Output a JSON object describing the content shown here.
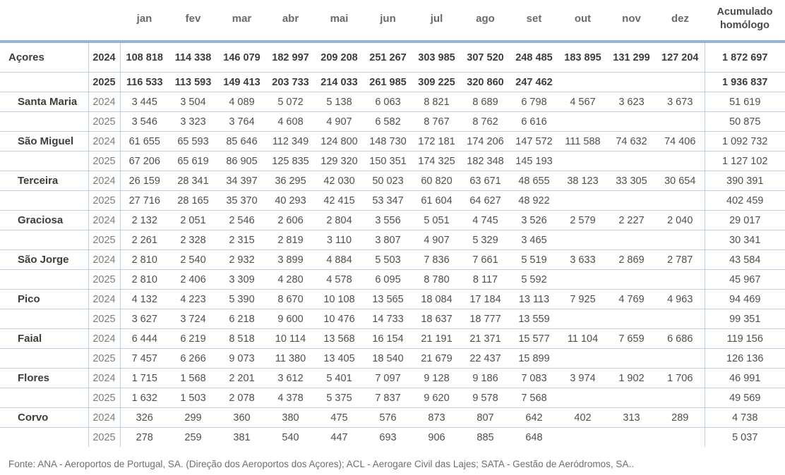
{
  "table": {
    "month_headers": [
      "jan",
      "fev",
      "mar",
      "abr",
      "mai",
      "jun",
      "jul",
      "ago",
      "set",
      "out",
      "nov",
      "dez"
    ],
    "acum_header": "Acumulado\nhomólogo",
    "groups": [
      {
        "label": "Açores",
        "indent": false,
        "totals": true,
        "rows": [
          {
            "year": "2024",
            "values": [
              "108 818",
              "114 338",
              "146 079",
              "182 997",
              "209 208",
              "251 267",
              "303 985",
              "307 520",
              "248 485",
              "183 895",
              "131 299",
              "127 204"
            ],
            "acum": "1 872 697"
          },
          {
            "year": "2025",
            "values": [
              "116 533",
              "113 593",
              "149 413",
              "203 733",
              "214 033",
              "261 985",
              "309 225",
              "320 860",
              "247 462",
              "",
              "",
              ""
            ],
            "acum": "1 936 837"
          }
        ]
      },
      {
        "label": "Santa Maria",
        "indent": true,
        "totals": false,
        "rows": [
          {
            "year": "2024",
            "values": [
              "3 445",
              "3 504",
              "4 089",
              "5 072",
              "5 138",
              "6 063",
              "8 821",
              "8 689",
              "6 798",
              "4 567",
              "3 623",
              "3 673"
            ],
            "acum": "51 619"
          },
          {
            "year": "2025",
            "values": [
              "3 546",
              "3 323",
              "3 764",
              "4 608",
              "4 907",
              "6 582",
              "8 767",
              "8 762",
              "6 616",
              "",
              "",
              ""
            ],
            "acum": "50 875"
          }
        ]
      },
      {
        "label": "São Miguel",
        "indent": true,
        "totals": false,
        "rows": [
          {
            "year": "2024",
            "values": [
              "61 655",
              "65 593",
              "85 646",
              "112 349",
              "124 800",
              "148 730",
              "172 181",
              "174 206",
              "147 572",
              "111 588",
              "74 632",
              "74 406"
            ],
            "acum": "1 092 732"
          },
          {
            "year": "2025",
            "values": [
              "67 206",
              "65 619",
              "86 905",
              "125 835",
              "129 320",
              "150 351",
              "174 325",
              "182 348",
              "145 193",
              "",
              "",
              ""
            ],
            "acum": "1 127 102"
          }
        ]
      },
      {
        "label": "Terceira",
        "indent": true,
        "totals": false,
        "rows": [
          {
            "year": "2024",
            "values": [
              "26 159",
              "28 341",
              "34 397",
              "36 295",
              "42 030",
              "50 023",
              "60 820",
              "63 671",
              "48 655",
              "38 123",
              "33 305",
              "30 654"
            ],
            "acum": "390 391"
          },
          {
            "year": "2025",
            "values": [
              "27 716",
              "28 165",
              "35 370",
              "40 293",
              "42 415",
              "53 347",
              "61 604",
              "64 627",
              "48 922",
              "",
              "",
              ""
            ],
            "acum": "402 459"
          }
        ]
      },
      {
        "label": "Graciosa",
        "indent": true,
        "totals": false,
        "rows": [
          {
            "year": "2024",
            "values": [
              "2 132",
              "2 051",
              "2 546",
              "2 606",
              "2 804",
              "3 556",
              "5 051",
              "4 745",
              "3 526",
              "2 579",
              "2 227",
              "2 040"
            ],
            "acum": "29 017"
          },
          {
            "year": "2025",
            "values": [
              "2 261",
              "2 328",
              "2 315",
              "2 819",
              "3 110",
              "3 807",
              "4 907",
              "5 329",
              "3 465",
              "",
              "",
              ""
            ],
            "acum": "30 341"
          }
        ]
      },
      {
        "label": "São Jorge",
        "indent": true,
        "totals": false,
        "rows": [
          {
            "year": "2024",
            "values": [
              "2 810",
              "2 540",
              "2 932",
              "3 899",
              "4 884",
              "5 503",
              "7 836",
              "7 661",
              "5 519",
              "3 633",
              "2 869",
              "2 787"
            ],
            "acum": "43 584"
          },
          {
            "year": "2025",
            "values": [
              "2 810",
              "2 406",
              "3 309",
              "4 280",
              "4 578",
              "6 095",
              "8 780",
              "8 117",
              "5 592",
              "",
              "",
              ""
            ],
            "acum": "45 967"
          }
        ]
      },
      {
        "label": "Pico",
        "indent": true,
        "totals": false,
        "rows": [
          {
            "year": "2024",
            "values": [
              "4 132",
              "4 223",
              "5 390",
              "8 670",
              "10 108",
              "13 565",
              "18 084",
              "17 184",
              "13 113",
              "7 925",
              "4 769",
              "4 963"
            ],
            "acum": "94 469"
          },
          {
            "year": "2025",
            "values": [
              "3 627",
              "3 724",
              "6 218",
              "9 600",
              "10 476",
              "14 733",
              "18 637",
              "18 777",
              "13 559",
              "",
              "",
              ""
            ],
            "acum": "99 351"
          }
        ]
      },
      {
        "label": "Faial",
        "indent": true,
        "totals": false,
        "rows": [
          {
            "year": "2024",
            "values": [
              "6 444",
              "6 219",
              "8 518",
              "10 114",
              "13 568",
              "16 154",
              "21 191",
              "21 371",
              "15 577",
              "11 104",
              "7 659",
              "6 686"
            ],
            "acum": "119 156"
          },
          {
            "year": "2025",
            "values": [
              "7 457",
              "6 266",
              "9 073",
              "11 380",
              "13 405",
              "18 540",
              "21 679",
              "22 437",
              "15 899",
              "",
              "",
              ""
            ],
            "acum": "126 136"
          }
        ]
      },
      {
        "label": "Flores",
        "indent": true,
        "totals": false,
        "rows": [
          {
            "year": "2024",
            "values": [
              "1 715",
              "1 568",
              "2 201",
              "3 612",
              "5 401",
              "7 097",
              "9 128",
              "9 186",
              "7 083",
              "3 974",
              "1 902",
              "1 706"
            ],
            "acum": "46 991"
          },
          {
            "year": "2025",
            "values": [
              "1 632",
              "1 503",
              "2 078",
              "4 378",
              "5 375",
              "7 837",
              "9 620",
              "9 578",
              "7 568",
              "",
              "",
              ""
            ],
            "acum": "49 569"
          }
        ]
      },
      {
        "label": "Corvo",
        "indent": true,
        "totals": false,
        "rows": [
          {
            "year": "2024",
            "values": [
              "326",
              "299",
              "360",
              "380",
              "475",
              "576",
              "873",
              "807",
              "642",
              "402",
              "313",
              "289"
            ],
            "acum": "4 738"
          },
          {
            "year": "2025",
            "values": [
              "278",
              "259",
              "381",
              "540",
              "447",
              "693",
              "906",
              "885",
              "648",
              "",
              "",
              ""
            ],
            "acum": "5 037"
          }
        ]
      }
    ]
  },
  "footer": {
    "source": "Fonte: ANA - Aeroportos de Portugal, SA. (Direção dos Aeroportos dos Açores); ACL - Aerogare Civil das Lajes; SATA - Gestão de Aeródromos, SA.."
  },
  "colors": {
    "thick_rule": "#96b3d7",
    "thin_rule": "#bfd0e6",
    "text_dark": "#3d3d3d",
    "text_gray": "#7c7c7c"
  },
  "chart_data": {
    "type": "table",
    "title": "Passageiros nos aeroportos dos Açores por ilha, 2024 vs 2025",
    "columns": [
      "jan",
      "fev",
      "mar",
      "abr",
      "mai",
      "jun",
      "jul",
      "ago",
      "set",
      "out",
      "nov",
      "dez",
      "Acumulado homólogo"
    ],
    "rows": [
      {
        "entity": "Açores",
        "year": 2024,
        "values": [
          108818,
          114338,
          146079,
          182997,
          209208,
          251267,
          303985,
          307520,
          248485,
          183895,
          131299,
          127204
        ],
        "acumulado": 1872697
      },
      {
        "entity": "Açores",
        "year": 2025,
        "values": [
          116533,
          113593,
          149413,
          203733,
          214033,
          261985,
          309225,
          320860,
          247462,
          null,
          null,
          null
        ],
        "acumulado": 1936837
      },
      {
        "entity": "Santa Maria",
        "year": 2024,
        "values": [
          3445,
          3504,
          4089,
          5072,
          5138,
          6063,
          8821,
          8689,
          6798,
          4567,
          3623,
          3673
        ],
        "acumulado": 51619
      },
      {
        "entity": "Santa Maria",
        "year": 2025,
        "values": [
          3546,
          3323,
          3764,
          4608,
          4907,
          6582,
          8767,
          8762,
          6616,
          null,
          null,
          null
        ],
        "acumulado": 50875
      },
      {
        "entity": "São Miguel",
        "year": 2024,
        "values": [
          61655,
          65593,
          85646,
          112349,
          124800,
          148730,
          172181,
          174206,
          147572,
          111588,
          74632,
          74406
        ],
        "acumulado": 1092732
      },
      {
        "entity": "São Miguel",
        "year": 2025,
        "values": [
          67206,
          65619,
          86905,
          125835,
          129320,
          150351,
          174325,
          182348,
          145193,
          null,
          null,
          null
        ],
        "acumulado": 1127102
      },
      {
        "entity": "Terceira",
        "year": 2024,
        "values": [
          26159,
          28341,
          34397,
          36295,
          42030,
          50023,
          60820,
          63671,
          48655,
          38123,
          33305,
          30654
        ],
        "acumulado": 390391
      },
      {
        "entity": "Terceira",
        "year": 2025,
        "values": [
          27716,
          28165,
          35370,
          40293,
          42415,
          53347,
          61604,
          64627,
          48922,
          null,
          null,
          null
        ],
        "acumulado": 402459
      },
      {
        "entity": "Graciosa",
        "year": 2024,
        "values": [
          2132,
          2051,
          2546,
          2606,
          2804,
          3556,
          5051,
          4745,
          3526,
          2579,
          2227,
          2040
        ],
        "acumulado": 29017
      },
      {
        "entity": "Graciosa",
        "year": 2025,
        "values": [
          2261,
          2328,
          2315,
          2819,
          3110,
          3807,
          4907,
          5329,
          3465,
          null,
          null,
          null
        ],
        "acumulado": 30341
      },
      {
        "entity": "São Jorge",
        "year": 2024,
        "values": [
          2810,
          2540,
          2932,
          3899,
          4884,
          5503,
          7836,
          7661,
          5519,
          3633,
          2869,
          2787
        ],
        "acumulado": 43584
      },
      {
        "entity": "São Jorge",
        "year": 2025,
        "values": [
          2810,
          2406,
          3309,
          4280,
          4578,
          6095,
          8780,
          8117,
          5592,
          null,
          null,
          null
        ],
        "acumulado": 45967
      },
      {
        "entity": "Pico",
        "year": 2024,
        "values": [
          4132,
          4223,
          5390,
          8670,
          10108,
          13565,
          18084,
          17184,
          13113,
          7925,
          4769,
          4963
        ],
        "acumulado": 94469
      },
      {
        "entity": "Pico",
        "year": 2025,
        "values": [
          3627,
          3724,
          6218,
          9600,
          10476,
          14733,
          18637,
          18777,
          13559,
          null,
          null,
          null
        ],
        "acumulado": 99351
      },
      {
        "entity": "Faial",
        "year": 2024,
        "values": [
          6444,
          6219,
          8518,
          10114,
          13568,
          16154,
          21191,
          21371,
          15577,
          11104,
          7659,
          6686
        ],
        "acumulado": 119156
      },
      {
        "entity": "Faial",
        "year": 2025,
        "values": [
          7457,
          6266,
          9073,
          11380,
          13405,
          18540,
          21679,
          22437,
          15899,
          null,
          null,
          null
        ],
        "acumulado": 126136
      },
      {
        "entity": "Flores",
        "year": 2024,
        "values": [
          1715,
          1568,
          2201,
          3612,
          5401,
          7097,
          9128,
          9186,
          7083,
          3974,
          1902,
          1706
        ],
        "acumulado": 46991
      },
      {
        "entity": "Flores",
        "year": 2025,
        "values": [
          1632,
          1503,
          2078,
          4378,
          5375,
          7837,
          9620,
          9578,
          7568,
          null,
          null,
          null
        ],
        "acumulado": 49569
      },
      {
        "entity": "Corvo",
        "year": 2024,
        "values": [
          326,
          299,
          360,
          380,
          475,
          576,
          873,
          807,
          642,
          402,
          313,
          289
        ],
        "acumulado": 4738
      },
      {
        "entity": "Corvo",
        "year": 2025,
        "values": [
          278,
          259,
          381,
          540,
          447,
          693,
          906,
          885,
          648,
          null,
          null,
          null
        ],
        "acumulado": 5037
      }
    ]
  }
}
